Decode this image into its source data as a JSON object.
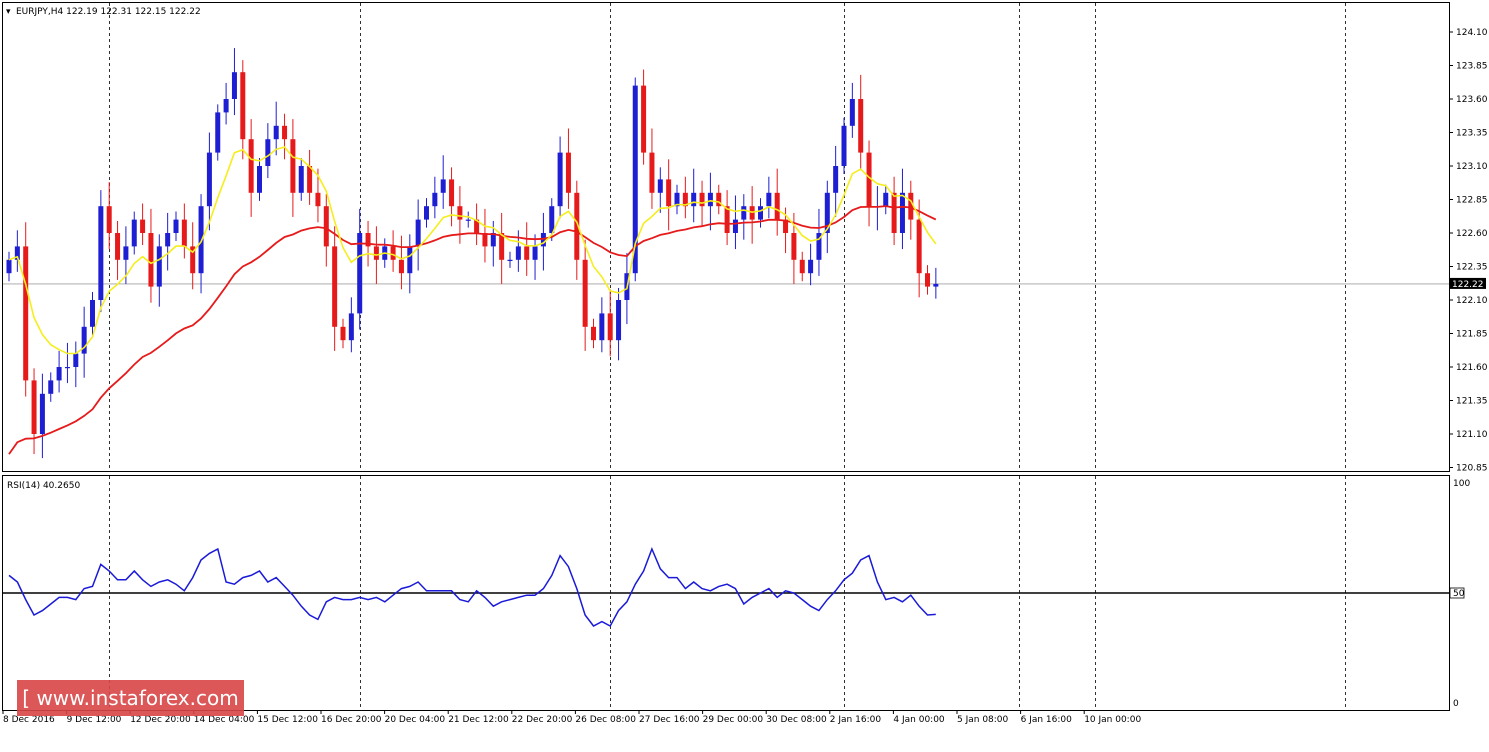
{
  "header": {
    "symbol_line": "EURJPY,H4  122.19 122.31 122.15 122.22",
    "rsi_line": "RSI(14) 40.2650"
  },
  "watermark": {
    "text": "[ www.instaforex.com ]"
  },
  "colors": {
    "bull": "#1e1ed2",
    "bear": "#e61a1a",
    "ma_fast": "#f5ee1e",
    "ma_slow": "#e61a1a",
    "rsi": "#1a1ad8",
    "grid": "#000000",
    "watermark": "#d94545"
  },
  "chart_data": [
    {
      "type": "candlestick",
      "title": "EURJPY,H4",
      "ohlc_header": [
        122.19,
        122.31,
        122.15,
        122.22
      ],
      "current_price": 122.22,
      "current_price_label": "122.22",
      "ylim": [
        120.8,
        124.2
      ],
      "y_ticks": [
        "124.10",
        "123.85",
        "123.60",
        "123.35",
        "123.10",
        "122.85",
        "122.60",
        "122.35",
        "122.10",
        "121.85",
        "121.60",
        "121.35",
        "121.10",
        "120.85"
      ],
      "x_ticks": [
        "8 Dec 2016",
        "9 Dec 12:00",
        "12 Dec 20:00",
        "14 Dec 04:00",
        "15 Dec 12:00",
        "16 Dec 20:00",
        "20 Dec 04:00",
        "21 Dec 12:00",
        "22 Dec 20:00",
        "26 Dec 08:00",
        "27 Dec 16:00",
        "29 Dec 00:00",
        "30 Dec 08:00",
        "2 Jan 16:00",
        "4 Jan 00:00",
        "5 Jan 08:00",
        "6 Jan 16:00",
        "10 Jan 00:00"
      ],
      "period_separators": [
        12,
        42,
        72,
        100,
        130,
        160
      ],
      "closes": [
        122.4,
        122.5,
        121.5,
        121.1,
        121.4,
        121.5,
        121.6,
        121.6,
        121.7,
        121.9,
        122.1,
        122.8,
        122.6,
        122.4,
        122.5,
        122.7,
        122.6,
        122.2,
        122.5,
        122.6,
        122.7,
        122.5,
        122.3,
        122.8,
        123.2,
        123.5,
        123.6,
        123.8,
        123.3,
        122.9,
        123.1,
        123.3,
        123.4,
        123.3,
        122.9,
        123.1,
        122.9,
        122.8,
        122.5,
        121.9,
        121.8,
        122.0,
        122.6,
        122.5,
        122.4,
        122.5,
        122.4,
        122.3,
        122.5,
        122.7,
        122.8,
        122.9,
        123.0,
        122.8,
        122.7,
        122.7,
        122.6,
        122.5,
        122.6,
        122.4,
        122.4,
        122.5,
        122.4,
        122.5,
        122.6,
        122.8,
        123.2,
        122.9,
        122.4,
        121.9,
        121.8,
        122.0,
        121.8,
        122.1,
        122.3,
        123.7,
        123.2,
        122.9,
        123.0,
        122.8,
        122.9,
        122.8,
        122.9,
        122.8,
        122.9,
        122.8,
        122.6,
        122.7,
        122.8,
        122.7,
        122.8,
        122.9,
        122.7,
        122.6,
        122.4,
        122.3,
        122.4,
        122.6,
        122.9,
        123.1,
        123.4,
        123.6,
        123.2,
        122.8,
        122.8,
        122.9,
        122.6,
        122.9,
        122.7,
        122.3,
        122.2,
        122.22
      ],
      "overlays": [
        "yellow fast moving average",
        "red slow moving average"
      ]
    },
    {
      "type": "line",
      "title": "RSI(14) 40.2650",
      "ylim": [
        0,
        100
      ],
      "y_ticks": [
        "100",
        "50",
        "0"
      ],
      "level_line": 50,
      "level_label": "50",
      "values": [
        58,
        55,
        47,
        40,
        42,
        45,
        48,
        48,
        47,
        52,
        53,
        63,
        60,
        56,
        56,
        60,
        56,
        53,
        55,
        56,
        54,
        51,
        57,
        65,
        68,
        70,
        55,
        54,
        57,
        58,
        60,
        55,
        57,
        53,
        49,
        44,
        40,
        38,
        46,
        48,
        47,
        47,
        48,
        47,
        48,
        46,
        49,
        52,
        53,
        55,
        51,
        51,
        51,
        51,
        47,
        46,
        51,
        48,
        44,
        46,
        47,
        48,
        49,
        49,
        52,
        58,
        67,
        62,
        52,
        40,
        35,
        37,
        35,
        42,
        46,
        54,
        60,
        70,
        61,
        57,
        57,
        52,
        55,
        52,
        51,
        53,
        54,
        52,
        45,
        48,
        50,
        52,
        48,
        51,
        50,
        47,
        44,
        42,
        47,
        51,
        56,
        59,
        65,
        67,
        55,
        47,
        48,
        46,
        49,
        44,
        40,
        40.265
      ]
    }
  ]
}
